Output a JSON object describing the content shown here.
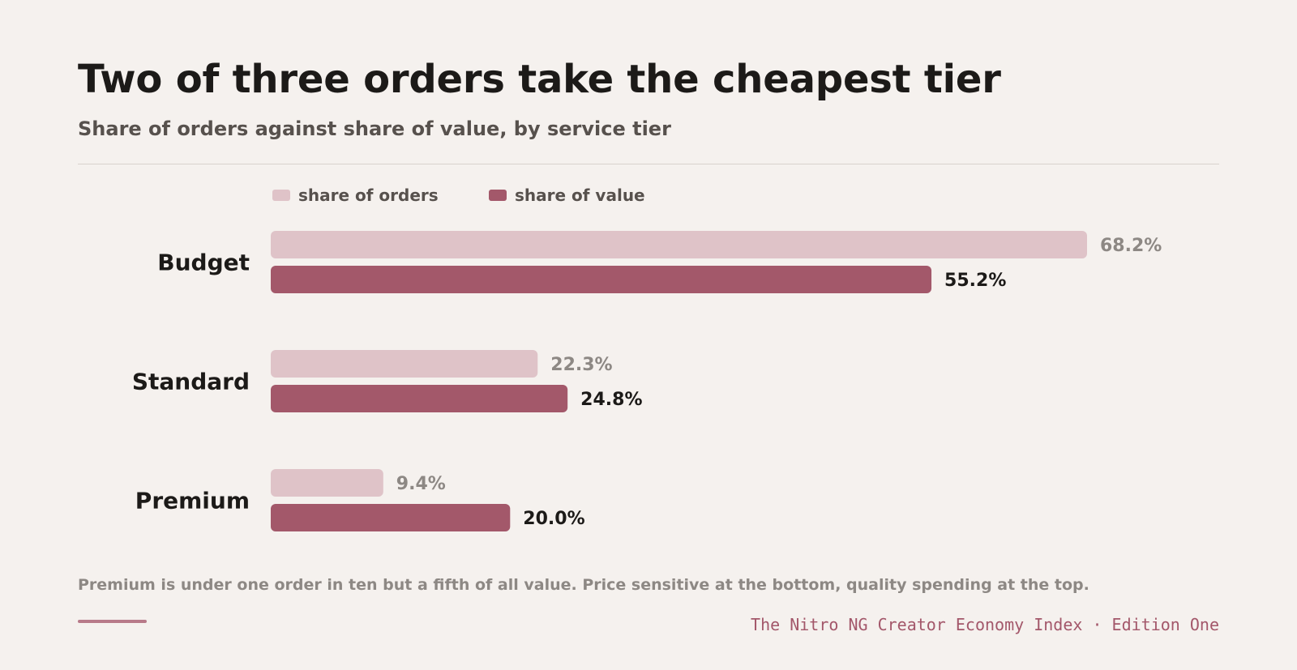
{
  "title": "Two of three orders take the cheapest tier",
  "subtitle": "Share of orders against share of value, by service tier",
  "legend": [
    {
      "label": "share of orders",
      "color": "#dfc3c8"
    },
    {
      "label": "share of value",
      "color": "#a3586a"
    }
  ],
  "note": "Premium is under one order in ten but a fifth of all value. Price sensitive at the bottom, quality spending at the top.",
  "source": "The Nitro NG Creator Economy Index · Edition One",
  "colors": {
    "orders_bar": "#dfc3c8",
    "value_bar": "#a3586a",
    "orders_text": "#8d8884",
    "value_text": "#1c1a18",
    "accent": "#b87a89"
  },
  "chart_data": {
    "type": "bar",
    "orientation": "horizontal",
    "title": "Two of three orders take the cheapest tier",
    "subtitle": "Share of orders against share of value, by service tier",
    "categories": [
      "Budget",
      "Standard",
      "Premium"
    ],
    "series": [
      {
        "name": "share of orders",
        "values": [
          68.2,
          22.3,
          9.4
        ],
        "labels": [
          "68.2%",
          "22.3%",
          "9.4%"
        ]
      },
      {
        "name": "share of value",
        "values": [
          55.2,
          24.8,
          20.0
        ],
        "labels": [
          "55.2%",
          "24.8%",
          "20.0%"
        ]
      }
    ],
    "unit": "%",
    "xlim": [
      0,
      68.2
    ],
    "grid": false,
    "legend_position": "top-left"
  }
}
